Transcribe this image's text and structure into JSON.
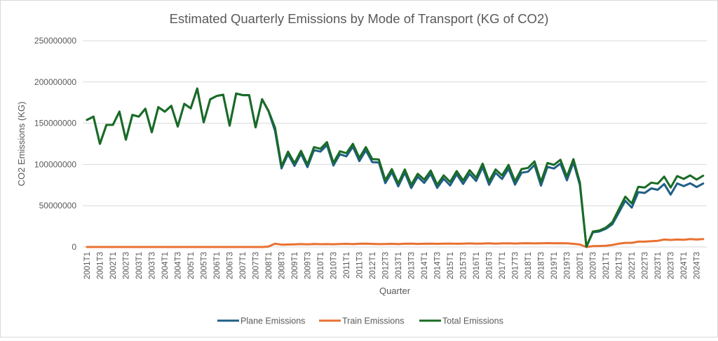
{
  "chart_data": {
    "type": "line",
    "title": "Estimated Quarterly Emissions by Mode of Transport (KG of CO2)",
    "xlabel": "Quarter",
    "ylabel": "CO2 Emissions (KG)",
    "ylim": [
      0,
      250000000
    ],
    "yticks": [
      0,
      50000000,
      100000000,
      150000000,
      200000000,
      250000000
    ],
    "ytick_labels": [
      "0",
      "50000000",
      "100000000",
      "150000000",
      "200000000",
      "250000000"
    ],
    "grid": true,
    "legend_position": "bottom",
    "x_label_every": 2,
    "values_scale": 1000000,
    "categories": [
      "2001T1",
      "2001T2",
      "2001T3",
      "2001T4",
      "2002T1",
      "2002T2",
      "2002T3",
      "2002T4",
      "2003T1",
      "2003T2",
      "2003T3",
      "2003T4",
      "2004T1",
      "2004T2",
      "2004T3",
      "2004T4",
      "2005T1",
      "2005T2",
      "2005T3",
      "2005T4",
      "2006T1",
      "2006T2",
      "2006T3",
      "2006T4",
      "2007T1",
      "2007T2",
      "2007T3",
      "2007T4",
      "2008T1",
      "2008T2",
      "2008T3",
      "2008T4",
      "2009T1",
      "2009T2",
      "2009T3",
      "2009T4",
      "2010T1",
      "2010T2",
      "2010T3",
      "2010T4",
      "2011T1",
      "2011T2",
      "2011T3",
      "2011T4",
      "2012T1",
      "2012T2",
      "2012T3",
      "2012T4",
      "2013T1",
      "2013T2",
      "2013T3",
      "2013T4",
      "2014T1",
      "2014T2",
      "2014T3",
      "2014T4",
      "2015T1",
      "2015T2",
      "2015T3",
      "2015T4",
      "2016T1",
      "2016T2",
      "2016T3",
      "2016T4",
      "2017T1",
      "2017T2",
      "2017T3",
      "2017T4",
      "2018T1",
      "2018T2",
      "2018T3",
      "2018T4",
      "2019T1",
      "2019T2",
      "2019T3",
      "2019T4",
      "2020T1",
      "2020T2",
      "2020T3",
      "2020T4",
      "2021T1",
      "2021T2",
      "2021T3",
      "2021T4",
      "2022T1",
      "2022T2",
      "2022T3",
      "2022T4",
      "2023T1",
      "2023T2",
      "2023T3",
      "2023T4",
      "2024T1",
      "2024T2",
      "2024T3",
      "2024T4"
    ],
    "series": [
      {
        "name": "Plane Emissions",
        "color": "#1F5F86",
        "values": [
          154,
          158,
          125,
          148,
          148,
          164,
          130,
          160,
          158,
          167.5,
          139,
          169.5,
          164,
          171,
          146,
          173.5,
          168,
          192,
          151,
          179,
          183,
          184.5,
          147,
          186,
          184,
          184,
          145,
          179,
          164.5,
          140.5,
          95.2,
          112.6,
          98.3,
          113,
          96.8,
          117.4,
          115.6,
          123.5,
          98.7,
          112.4,
          109.9,
          121.5,
          104.1,
          117,
          102.8,
          102.5,
          77.4,
          90.6,
          73.5,
          90.1,
          71.4,
          85,
          77.7,
          88.5,
          71.6,
          82.7,
          74.6,
          88.1,
          76.4,
          88.7,
          80,
          96.8,
          75.3,
          89.9,
          82.4,
          95,
          75.5,
          90,
          91.2,
          99.4,
          74.3,
          97.1,
          95.1,
          101.1,
          80.8,
          102.7,
          75.2,
          0.3,
          17.7,
          18.8,
          22,
          27.5,
          41.6,
          56,
          47.7,
          66.5,
          65.5,
          71,
          69.3,
          76.3,
          63.5,
          77,
          73.7,
          77.2,
          72.6,
          76.9
        ]
      },
      {
        "name": "Train Emissions",
        "color": "#E97132",
        "values": [
          0,
          0,
          0,
          0,
          0,
          0,
          0,
          0,
          0,
          0,
          0,
          0,
          0,
          0,
          0,
          0,
          0,
          0,
          0,
          0,
          0,
          0,
          0,
          0,
          0,
          0,
          0,
          0,
          0.5,
          4,
          2.8,
          3,
          3.2,
          3.5,
          3.2,
          3.6,
          3.4,
          3.5,
          3.3,
          3.6,
          3.8,
          3.5,
          3.9,
          4,
          3.7,
          3.5,
          3.6,
          3.8,
          3.5,
          3.9,
          4,
          3.7,
          3.9,
          4.1,
          3.8,
          4,
          4.2,
          3.9,
          4.1,
          4.3,
          4,
          4.2,
          4.4,
          4.1,
          4.3,
          4.5,
          4.2,
          4.4,
          4.6,
          4.3,
          4.5,
          4.7,
          4.4,
          4.6,
          4.5,
          3.8,
          3,
          0,
          1,
          1.2,
          1.5,
          2.5,
          4,
          5,
          5,
          6.5,
          6.5,
          7,
          7.5,
          9,
          8.5,
          9,
          8.8,
          9.5,
          9,
          9.5
        ]
      },
      {
        "name": "Total Emissions",
        "color": "#196B24",
        "values": [
          154,
          158,
          125,
          148,
          148,
          164,
          130,
          160,
          158,
          167.5,
          139,
          169.5,
          164,
          171,
          146,
          173.5,
          168,
          192,
          151,
          179,
          183,
          184.5,
          147,
          186,
          184,
          184,
          145,
          179,
          165,
          144.5,
          98,
          115.6,
          101.5,
          116.5,
          100,
          121,
          119,
          127,
          102,
          116,
          113.7,
          125,
          108,
          121,
          106.5,
          106,
          81,
          94.4,
          77,
          94,
          75.4,
          88.7,
          81.6,
          92.6,
          75.4,
          86.7,
          78.8,
          92,
          80.5,
          93,
          84,
          101,
          79.7,
          94,
          86.7,
          99.5,
          79.7,
          94.4,
          95.8,
          103.7,
          78.8,
          101.8,
          99.5,
          105.7,
          85.3,
          106.5,
          78.2,
          0.3,
          18.7,
          20,
          23.5,
          30,
          45.6,
          61,
          52.7,
          73,
          72,
          78,
          76.8,
          85.3,
          72,
          86,
          82.5,
          86.7,
          81.6,
          86.4
        ]
      }
    ]
  }
}
